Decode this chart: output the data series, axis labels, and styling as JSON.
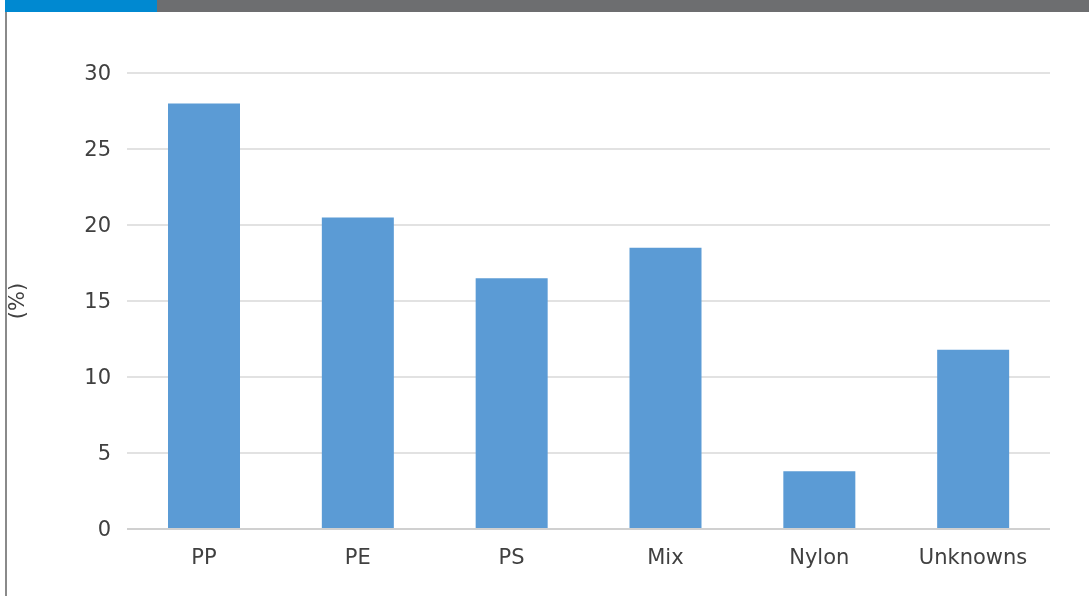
{
  "chart_data": {
    "type": "bar",
    "ylabel": "(%)",
    "categories": [
      "PP",
      "PE",
      "PS",
      "Mix",
      "Nylon",
      "Unknowns"
    ],
    "values": [
      28,
      20.5,
      16.5,
      18.5,
      3.8,
      11.8
    ],
    "color": "#5b9bd5",
    "ylim": [
      0,
      30
    ],
    "yticks": [
      0,
      5,
      10,
      15,
      20,
      25,
      30
    ],
    "grid": "y",
    "legend": false
  }
}
